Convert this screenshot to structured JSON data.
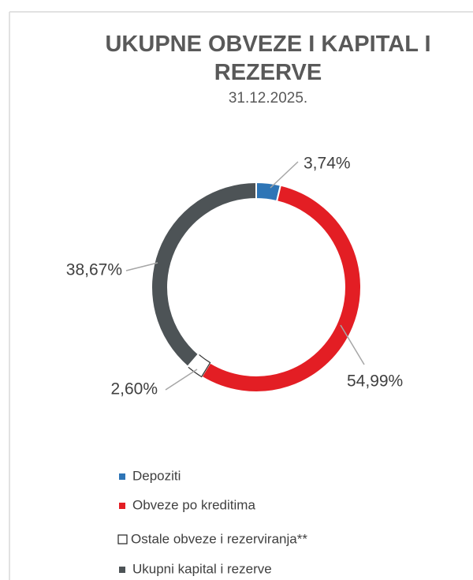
{
  "chart_data": {
    "type": "donut",
    "title": "UKUPNE OBVEZE I KAPITAL I REZERVE",
    "subtitle": "31.12.2025.",
    "categories": [
      "Depoziti",
      "Obveze po kreditima",
      "Ostale obveze i rezerviranja**",
      "Ukupni kapital i rezerve"
    ],
    "values": [
      3.74,
      54.99,
      2.6,
      38.67
    ],
    "value_labels": [
      "3,74%",
      "54,99%",
      "2,60%",
      "38,67%"
    ],
    "colors": [
      "#2e75b6",
      "#e31e24",
      "#ffffff",
      "#4d5356"
    ],
    "legend": "bottom"
  }
}
